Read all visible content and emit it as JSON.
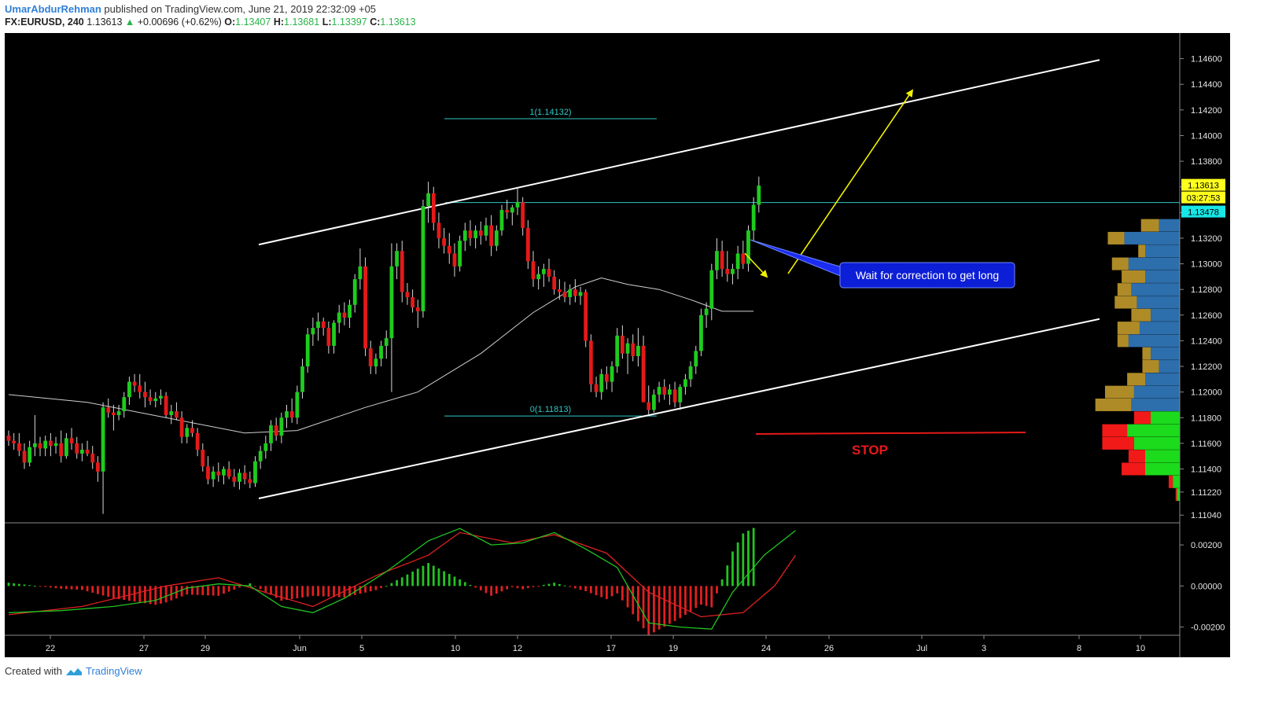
{
  "header": {
    "author": "UmarAbdurRehman",
    "published": "published on TradingView.com, June 21, 2019 22:32:09 +05",
    "symbol": "FX:EURUSD, 240",
    "price": "1.13613",
    "change": "+0.00696 (+0.62%)",
    "o_label": "O:",
    "o": "1.13407",
    "h_label": "H:",
    "h": "1.13681",
    "l_label": "L:",
    "l": "1.13397",
    "c_label": "C:",
    "c": "1.13613"
  },
  "footer": {
    "created_with": "Created with",
    "brand": "TradingView"
  },
  "colors": {
    "background": "#000000",
    "up": "#1ecc1e",
    "down": "#e51919",
    "ma": "#cfcfcf",
    "channel": "#ffffff",
    "fib": "#2fc6c6",
    "arrow": "#f0f000",
    "callout": "#0c1ed6",
    "stop": "#e51919",
    "macd": "#22c322",
    "signal": "#e02020"
  },
  "chart_data": {
    "type": "candlestick",
    "symbol": "FX:EURUSD",
    "interval": "240",
    "price_axis": {
      "ticks": [
        "1.14600",
        "1.14400",
        "1.14200",
        "1.14000",
        "1.13800",
        "1.13600",
        "1.13400",
        "1.13200",
        "1.13000",
        "1.12800",
        "1.12600",
        "1.12400",
        "1.12200",
        "1.12000",
        "1.11800",
        "1.11600",
        "1.11400",
        "1.11220",
        "1.11040"
      ],
      "ylim": [
        1.1098,
        1.148
      ]
    },
    "time_axis": {
      "labels": [
        "22",
        "27",
        "29",
        "Jun",
        "5",
        "10",
        "12",
        "17",
        "19",
        "24",
        "26",
        "Jul",
        "3",
        "8",
        "10"
      ]
    },
    "badges": {
      "last_price": "1.13613",
      "countdown": "03:27:53",
      "level": "1.13478"
    },
    "fib_levels": [
      {
        "label": "1(1.14132)",
        "value": 1.14132
      },
      {
        "label": "0(1.11813)",
        "value": 1.11813
      }
    ],
    "horizontal_level": 1.13478,
    "channel": {
      "upper": [
        [
          "May 31",
          1.1315
        ],
        [
          "Jul 9",
          1.1459
        ]
      ],
      "lower": [
        [
          "May 31",
          1.1117
        ],
        [
          "Jul 9",
          1.1257
        ]
      ]
    },
    "annotation": "Wait for correction to get long",
    "stop_label": "STOP",
    "stop_level": 1.1166,
    "candles": [
      [
        1.1166,
        1.117,
        1.1158,
        1.1162
      ],
      [
        1.1162,
        1.1168,
        1.1155,
        1.116
      ],
      [
        1.116,
        1.1168,
        1.115,
        1.1154
      ],
      [
        1.1154,
        1.116,
        1.114,
        1.1145
      ],
      [
        1.1145,
        1.1162,
        1.1142,
        1.1157
      ],
      [
        1.1157,
        1.1182,
        1.115,
        1.116
      ],
      [
        1.116,
        1.1165,
        1.115,
        1.1156
      ],
      [
        1.1156,
        1.1166,
        1.115,
        1.1162
      ],
      [
        1.1162,
        1.1168,
        1.115,
        1.1158
      ],
      [
        1.1158,
        1.1165,
        1.1152,
        1.116
      ],
      [
        1.116,
        1.117,
        1.1145,
        1.115
      ],
      [
        1.115,
        1.1168,
        1.1148,
        1.1164
      ],
      [
        1.1164,
        1.1172,
        1.1155,
        1.116
      ],
      [
        1.116,
        1.1165,
        1.1148,
        1.1152
      ],
      [
        1.1152,
        1.116,
        1.1146,
        1.1155
      ],
      [
        1.1155,
        1.1162,
        1.115,
        1.1152
      ],
      [
        1.1152,
        1.1158,
        1.114,
        1.1145
      ],
      [
        1.1145,
        1.115,
        1.113,
        1.1138
      ],
      [
        1.1138,
        1.1192,
        1.1105,
        1.1188
      ],
      [
        1.1188,
        1.1195,
        1.118,
        1.1184
      ],
      [
        1.1184,
        1.119,
        1.117,
        1.1182
      ],
      [
        1.1182,
        1.119,
        1.1178,
        1.1185
      ],
      [
        1.1185,
        1.12,
        1.118,
        1.1196
      ],
      [
        1.1196,
        1.1212,
        1.119,
        1.1208
      ],
      [
        1.1208,
        1.1214,
        1.12,
        1.1205
      ],
      [
        1.1205,
        1.1214,
        1.1195,
        1.12
      ],
      [
        1.12,
        1.1208,
        1.1188,
        1.1196
      ],
      [
        1.1196,
        1.1202,
        1.119,
        1.1193
      ],
      [
        1.1193,
        1.12,
        1.1188,
        1.1195
      ],
      [
        1.1195,
        1.1202,
        1.119,
        1.1197
      ],
      [
        1.1197,
        1.12,
        1.118,
        1.1182
      ],
      [
        1.1182,
        1.119,
        1.1175,
        1.1185
      ],
      [
        1.1185,
        1.1192,
        1.1178,
        1.118
      ],
      [
        1.118,
        1.1185,
        1.116,
        1.1165
      ],
      [
        1.1165,
        1.1175,
        1.116,
        1.1172
      ],
      [
        1.1172,
        1.1178,
        1.1165,
        1.1168
      ],
      [
        1.1168,
        1.1172,
        1.115,
        1.1155
      ],
      [
        1.1155,
        1.116,
        1.1138,
        1.1142
      ],
      [
        1.1142,
        1.115,
        1.1128,
        1.1132
      ],
      [
        1.1132,
        1.1142,
        1.1126,
        1.1138
      ],
      [
        1.1138,
        1.1145,
        1.113,
        1.1135
      ],
      [
        1.1135,
        1.1142,
        1.1128,
        1.114
      ],
      [
        1.114,
        1.1146,
        1.1132,
        1.1134
      ],
      [
        1.1134,
        1.114,
        1.1126,
        1.113
      ],
      [
        1.113,
        1.114,
        1.1124,
        1.1137
      ],
      [
        1.1137,
        1.1143,
        1.1128,
        1.1132
      ],
      [
        1.1132,
        1.1138,
        1.1125,
        1.1129
      ],
      [
        1.1129,
        1.115,
        1.1126,
        1.1146
      ],
      [
        1.1146,
        1.1158,
        1.114,
        1.1154
      ],
      [
        1.1154,
        1.1166,
        1.1148,
        1.116
      ],
      [
        1.116,
        1.1178,
        1.1154,
        1.1174
      ],
      [
        1.1174,
        1.118,
        1.1162,
        1.1166
      ],
      [
        1.1166,
        1.1184,
        1.116,
        1.118
      ],
      [
        1.118,
        1.119,
        1.1172,
        1.1185
      ],
      [
        1.1185,
        1.1195,
        1.1176,
        1.118
      ],
      [
        1.118,
        1.1205,
        1.1175,
        1.12
      ],
      [
        1.12,
        1.1226,
        1.1195,
        1.122
      ],
      [
        1.122,
        1.125,
        1.1215,
        1.1245
      ],
      [
        1.1245,
        1.1258,
        1.1236,
        1.125
      ],
      [
        1.125,
        1.1262,
        1.124,
        1.1255
      ],
      [
        1.1255,
        1.1258,
        1.1244,
        1.125
      ],
      [
        1.125,
        1.1255,
        1.123,
        1.1236
      ],
      [
        1.1236,
        1.1256,
        1.123,
        1.1254
      ],
      [
        1.1254,
        1.1268,
        1.1246,
        1.1262
      ],
      [
        1.1262,
        1.127,
        1.1252,
        1.1258
      ],
      [
        1.1258,
        1.1272,
        1.125,
        1.1268
      ],
      [
        1.1268,
        1.1292,
        1.1262,
        1.1288
      ],
      [
        1.1288,
        1.1312,
        1.128,
        1.1298
      ],
      [
        1.1298,
        1.1305,
        1.1228,
        1.1234
      ],
      [
        1.1234,
        1.124,
        1.1214,
        1.122
      ],
      [
        1.122,
        1.123,
        1.1214,
        1.1226
      ],
      [
        1.1226,
        1.124,
        1.122,
        1.1236
      ],
      [
        1.1236,
        1.1248,
        1.1226,
        1.1242
      ],
      [
        1.1242,
        1.1316,
        1.12,
        1.1298
      ],
      [
        1.1298,
        1.1316,
        1.1288,
        1.131
      ],
      [
        1.131,
        1.1318,
        1.127,
        1.1278
      ],
      [
        1.1278,
        1.1285,
        1.1268,
        1.1274
      ],
      [
        1.1274,
        1.128,
        1.1262,
        1.1266
      ],
      [
        1.1266,
        1.1272,
        1.125,
        1.1263
      ],
      [
        1.1263,
        1.135,
        1.1258,
        1.1345
      ],
      [
        1.1345,
        1.1364,
        1.1332,
        1.1355
      ],
      [
        1.1355,
        1.136,
        1.1326,
        1.1332
      ],
      [
        1.1332,
        1.134,
        1.1312,
        1.132
      ],
      [
        1.132,
        1.1328,
        1.1308,
        1.1314
      ],
      [
        1.1314,
        1.1324,
        1.13,
        1.1308
      ],
      [
        1.1308,
        1.1316,
        1.129,
        1.1298
      ],
      [
        1.1298,
        1.1322,
        1.1294,
        1.1318
      ],
      [
        1.1318,
        1.1332,
        1.131,
        1.1326
      ],
      [
        1.1326,
        1.1334,
        1.1314,
        1.132
      ],
      [
        1.132,
        1.133,
        1.1312,
        1.1326
      ],
      [
        1.1326,
        1.1333,
        1.1315,
        1.1322
      ],
      [
        1.1322,
        1.1336,
        1.1318,
        1.133
      ],
      [
        1.133,
        1.1338,
        1.1306,
        1.1314
      ],
      [
        1.1314,
        1.133,
        1.131,
        1.1326
      ],
      [
        1.1326,
        1.1346,
        1.1322,
        1.1342
      ],
      [
        1.1342,
        1.135,
        1.1335,
        1.134
      ],
      [
        1.134,
        1.1346,
        1.133,
        1.1344
      ],
      [
        1.1344,
        1.136,
        1.1338,
        1.1348
      ],
      [
        1.1348,
        1.1352,
        1.1322,
        1.1328
      ],
      [
        1.1328,
        1.1334,
        1.1296,
        1.1302
      ],
      [
        1.1302,
        1.131,
        1.1282,
        1.1288
      ],
      [
        1.1288,
        1.1298,
        1.128,
        1.1292
      ],
      [
        1.1292,
        1.13,
        1.1282,
        1.1296
      ],
      [
        1.1296,
        1.1304,
        1.1286,
        1.129
      ],
      [
        1.129,
        1.1295,
        1.1276,
        1.128
      ],
      [
        1.128,
        1.1288,
        1.1272,
        1.1278
      ],
      [
        1.1278,
        1.1286,
        1.127,
        1.1274
      ],
      [
        1.1274,
        1.1284,
        1.1268,
        1.128
      ],
      [
        1.128,
        1.1288,
        1.127,
        1.1275
      ],
      [
        1.1275,
        1.1282,
        1.1268,
        1.1278
      ],
      [
        1.1278,
        1.128,
        1.1235,
        1.124
      ],
      [
        1.124,
        1.1245,
        1.12,
        1.1206
      ],
      [
        1.1206,
        1.1212,
        1.1196,
        1.12
      ],
      [
        1.12,
        1.1218,
        1.1194,
        1.1214
      ],
      [
        1.1214,
        1.122,
        1.1202,
        1.1208
      ],
      [
        1.1208,
        1.1224,
        1.12,
        1.122
      ],
      [
        1.122,
        1.125,
        1.1215,
        1.1244
      ],
      [
        1.1244,
        1.1252,
        1.1226,
        1.123
      ],
      [
        1.123,
        1.1242,
        1.1214,
        1.1238
      ],
      [
        1.1238,
        1.1245,
        1.1224,
        1.1228
      ],
      [
        1.1228,
        1.125,
        1.122,
        1.1236
      ],
      [
        1.1236,
        1.1244,
        1.1194,
        1.1192
      ],
      [
        1.1192,
        1.1205,
        1.1182,
        1.1186
      ],
      [
        1.1186,
        1.1202,
        1.1184,
        1.1198
      ],
      [
        1.1198,
        1.1208,
        1.1192,
        1.1204
      ],
      [
        1.1204,
        1.121,
        1.1194,
        1.1198
      ],
      [
        1.1198,
        1.1206,
        1.119,
        1.1202
      ],
      [
        1.1202,
        1.1208,
        1.1188,
        1.1192
      ],
      [
        1.1192,
        1.1206,
        1.1186,
        1.1204
      ],
      [
        1.1204,
        1.1214,
        1.1198,
        1.121
      ],
      [
        1.121,
        1.1224,
        1.1204,
        1.122
      ],
      [
        1.122,
        1.1236,
        1.1214,
        1.1232
      ],
      [
        1.1232,
        1.1265,
        1.1228,
        1.126
      ],
      [
        1.126,
        1.127,
        1.125,
        1.1265
      ],
      [
        1.1265,
        1.13,
        1.1256,
        1.1295
      ],
      [
        1.1295,
        1.132,
        1.1288,
        1.131
      ],
      [
        1.131,
        1.1318,
        1.129,
        1.1296
      ],
      [
        1.1296,
        1.131,
        1.1286,
        1.1292
      ],
      [
        1.1292,
        1.13,
        1.1284,
        1.1296
      ],
      [
        1.1296,
        1.1314,
        1.1288,
        1.1308
      ],
      [
        1.1308,
        1.1318,
        1.1296,
        1.13
      ],
      [
        1.13,
        1.133,
        1.1294,
        1.1326
      ],
      [
        1.1326,
        1.1352,
        1.1318,
        1.1346
      ],
      [
        1.1346,
        1.1368,
        1.134,
        1.1361
      ]
    ],
    "moving_average": [
      [
        0,
        1.1198
      ],
      [
        15,
        1.1192
      ],
      [
        30,
        1.118
      ],
      [
        45,
        1.1168
      ],
      [
        55,
        1.117
      ],
      [
        68,
        1.1188
      ],
      [
        78,
        1.12
      ],
      [
        90,
        1.123
      ],
      [
        100,
        1.1262
      ],
      [
        108,
        1.1282
      ],
      [
        113,
        1.1289
      ],
      [
        118,
        1.1284
      ],
      [
        124,
        1.128
      ],
      [
        130,
        1.1272
      ],
      [
        136,
        1.1263
      ],
      [
        142,
        1.1263
      ]
    ],
    "volume_profile": {
      "rows": [
        [
          1.133,
          0.28,
          0.15
        ],
        [
          1.132,
          0.52,
          0.4
        ],
        [
          1.131,
          0.3,
          0.25
        ],
        [
          1.13,
          0.49,
          0.37
        ],
        [
          1.129,
          0.42,
          0.25
        ],
        [
          1.128,
          0.45,
          0.35
        ],
        [
          1.127,
          0.47,
          0.31
        ],
        [
          1.126,
          0.35,
          0.21
        ],
        [
          1.125,
          0.45,
          0.29
        ],
        [
          1.124,
          0.45,
          0.37
        ],
        [
          1.123,
          0.27,
          0.21
        ],
        [
          1.122,
          0.27,
          0.15
        ],
        [
          1.121,
          0.38,
          0.25
        ],
        [
          1.12,
          0.54,
          0.33
        ],
        [
          1.119,
          0.61,
          0.35
        ],
        [
          1.118,
          0.33,
          0.21
        ],
        [
          1.117,
          0.56,
          0.38
        ],
        [
          1.116,
          0.56,
          0.33
        ],
        [
          1.115,
          0.37,
          0.25
        ],
        [
          1.114,
          0.42,
          0.25
        ],
        [
          1.113,
          0.08,
          0.05
        ],
        [
          1.112,
          0.03,
          0.02
        ]
      ],
      "upper_colors": [
        "#b8922a",
        "#2f74b5"
      ],
      "lower_colors": [
        "#ff1a1a",
        "#1ee61e"
      ],
      "split": 1.1185
    },
    "macd": {
      "axis_ticks": [
        "0.00200",
        "0.00000",
        "-0.00200"
      ],
      "ylim": [
        -0.0024,
        0.003
      ],
      "macd_line": [
        [
          0,
          -0.0013
        ],
        [
          10,
          -0.0012
        ],
        [
          20,
          -0.001
        ],
        [
          28,
          -0.0007
        ],
        [
          34,
          -0.0001
        ],
        [
          40,
          0.0001
        ],
        [
          46,
          0.0
        ],
        [
          52,
          -0.001
        ],
        [
          58,
          -0.0013
        ],
        [
          64,
          -0.0006
        ],
        [
          72,
          0.0007
        ],
        [
          80,
          0.0022
        ],
        [
          86,
          0.0028
        ],
        [
          92,
          0.002
        ],
        [
          98,
          0.0021
        ],
        [
          104,
          0.0026
        ],
        [
          110,
          0.0018
        ],
        [
          116,
          0.0009
        ],
        [
          122,
          -0.0018
        ],
        [
          128,
          -0.002
        ],
        [
          134,
          -0.0021
        ],
        [
          138,
          -0.0003
        ],
        [
          144,
          0.0015
        ],
        [
          150,
          0.0027
        ]
      ],
      "signal_line": [
        [
          0,
          -0.0014
        ],
        [
          14,
          -0.001
        ],
        [
          30,
          0.0
        ],
        [
          40,
          0.0004
        ],
        [
          50,
          -0.0004
        ],
        [
          58,
          -0.001
        ],
        [
          70,
          0.0005
        ],
        [
          80,
          0.0015
        ],
        [
          86,
          0.0026
        ],
        [
          96,
          0.0021
        ],
        [
          104,
          0.0025
        ],
        [
          114,
          0.0016
        ],
        [
          122,
          -0.0003
        ],
        [
          132,
          -0.0015
        ],
        [
          140,
          -0.0013
        ],
        [
          146,
          0.0
        ],
        [
          150,
          0.0015
        ]
      ]
    }
  }
}
